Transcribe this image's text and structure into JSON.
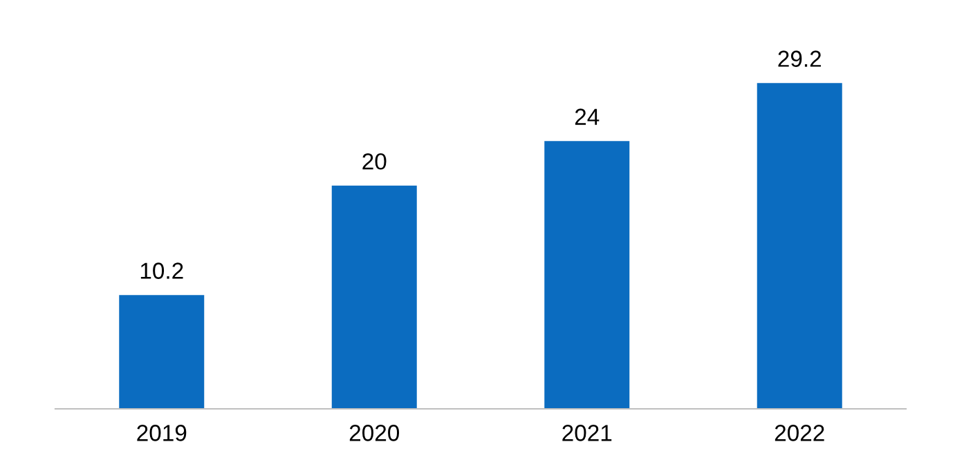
{
  "chart_data": {
    "type": "bar",
    "categories": [
      "2019",
      "2020",
      "2021",
      "2022"
    ],
    "values": [
      10.2,
      20,
      24,
      29.2
    ],
    "color": "#0b6cc0",
    "data_labels": true,
    "grid": false,
    "legend": false
  }
}
